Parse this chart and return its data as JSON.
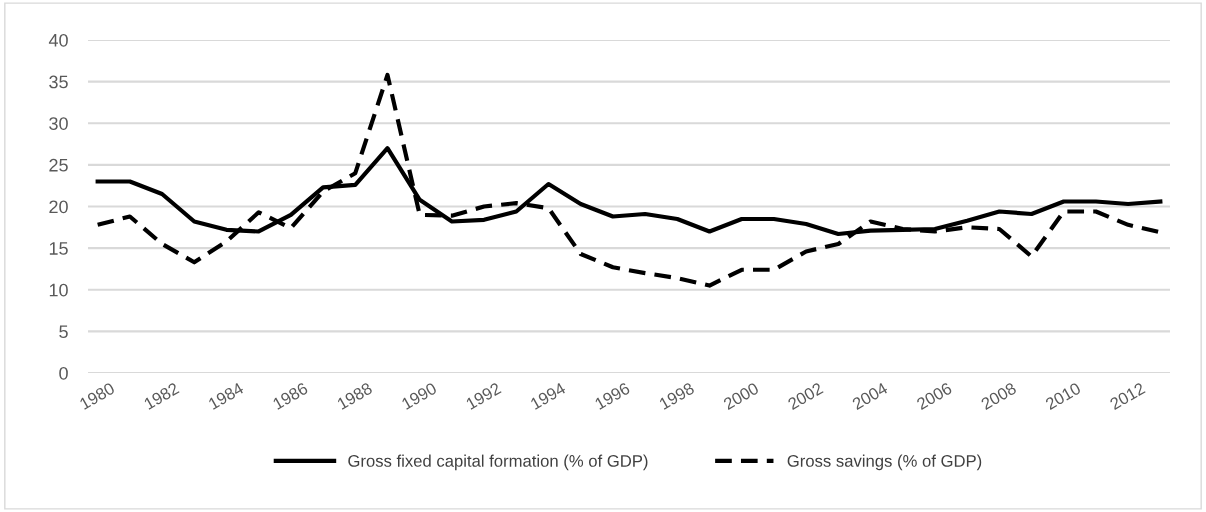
{
  "chart_data": {
    "type": "line",
    "categories": [
      "1980",
      null,
      "1982",
      null,
      "1984",
      null,
      "1986",
      null,
      "1988",
      null,
      "1990",
      null,
      "1992",
      null,
      "1994",
      null,
      "1996",
      null,
      "1998",
      null,
      "2000",
      null,
      "2002",
      null,
      "2004",
      null,
      "2006",
      null,
      "2008",
      null,
      "2010",
      null,
      "2012",
      null
    ],
    "series": [
      {
        "name": "Gross fixed capital formation (% of GDP)",
        "color": "#000000",
        "line_style": "solid",
        "values": [
          23,
          23,
          21.5,
          18.2,
          17.2,
          17,
          19,
          22.3,
          22.6,
          27,
          20.8,
          18.2,
          18.4,
          19.4,
          22.7,
          20.3,
          18.8,
          19.1,
          18.5,
          17,
          18.5,
          18.5,
          17.9,
          16.7,
          17.1,
          17.2,
          17.3,
          18.3,
          19.4,
          19.1,
          20.6,
          20.6,
          20.3,
          20.6
        ]
      },
      {
        "name": "Gross savings (% of GDP)",
        "color": "#000000",
        "line_style": "dashed",
        "values": [
          17.8,
          18.8,
          15.5,
          13.3,
          15.8,
          19.3,
          17.4,
          21.8,
          24,
          35.8,
          19,
          18.9,
          20,
          20.4,
          19.8,
          14.3,
          12.7,
          12,
          11.4,
          10.5,
          12.4,
          12.4,
          14.6,
          15.5,
          18.2,
          17.3,
          17,
          17.5,
          17.3,
          14,
          19.4,
          19.4,
          17.8,
          16.9
        ]
      }
    ],
    "ylim": [
      0,
      40
    ],
    "yticks": [
      0,
      5,
      10,
      15,
      20,
      25,
      30,
      35,
      40
    ],
    "grid": "y",
    "legend": "bottom",
    "marker": "none"
  }
}
